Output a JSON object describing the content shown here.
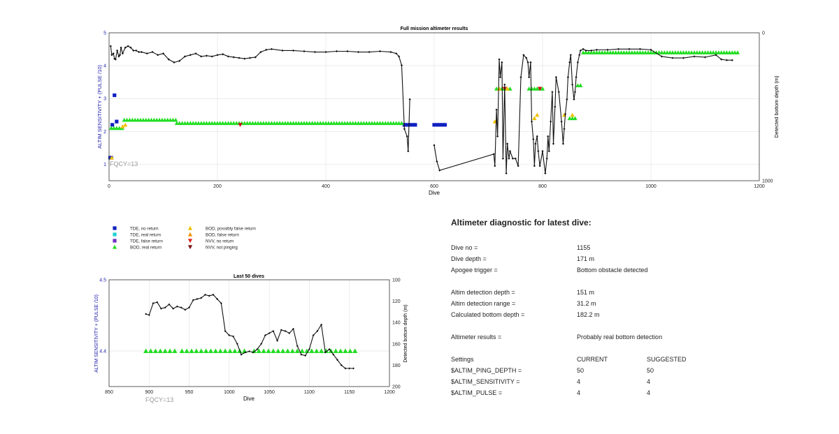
{
  "chart_data": [
    {
      "type": "scatter",
      "title": "Full mission altimeter results",
      "xlabel": "Dive",
      "ylabel": "ALTIM SENSITIVITY + (PULSE /10)",
      "ylabel_right": "Detected bottom depth (m)",
      "xlim": [
        0,
        1200
      ],
      "ylim": [
        0.5,
        5
      ],
      "ylim_right": [
        1000,
        0
      ],
      "xticks": [
        "0",
        "200",
        "400",
        "600",
        "800",
        "1000",
        "1200"
      ],
      "yticks": [
        "1",
        "2",
        "3",
        "4",
        "5"
      ],
      "yticks_right": [
        "0",
        "1000"
      ],
      "annotation": "FQCY=13",
      "grid": true,
      "colors": {
        "tde": "#1020c0",
        "bod_real": "#22dd22",
        "bod_possible": "#f0c000",
        "nvv": "#cc1111",
        "depth": "#111111"
      },
      "series": [
        {
          "name": "TDE, no return",
          "marker": "square",
          "color": "#1020c0",
          "x": [
            2,
            4,
            6,
            10,
            14,
            545,
            550,
            555,
            560,
            565,
            600,
            605,
            610,
            615,
            620
          ],
          "y": [
            1.2,
            1.2,
            2.2,
            3.1,
            2.3,
            2.2,
            2.2,
            2.2,
            2.2,
            2.2,
            2.2,
            2.2,
            2.2,
            2.2,
            2.2
          ]
        },
        {
          "name": "BOD, real return",
          "marker": "triangle",
          "color": "#22dd22",
          "segments": [
            [
              4,
              28,
              2.1
            ],
            [
              28,
              125,
              2.35
            ],
            [
              125,
              540,
              2.25
            ],
            [
              715,
              740,
              3.3
            ],
            [
              775,
              800,
              3.3
            ],
            [
              850,
              862,
              2.4
            ],
            [
              865,
              870,
              3.4
            ],
            [
              875,
              1160,
              4.4
            ]
          ]
        },
        {
          "name": "BOD, false return",
          "marker": "triangle",
          "color": "#f0c000",
          "x": [
            5,
            25,
            30,
            712,
            720,
            735,
            785,
            790,
            840,
            855
          ],
          "y": [
            1.2,
            2.15,
            2.2,
            2.3,
            3.3,
            3.3,
            2.4,
            2.5,
            2.5,
            2.5
          ]
        },
        {
          "name": "NVV, no return",
          "marker": "triangle-down",
          "color": "#cc1111",
          "x": [
            730,
            795,
            242
          ],
          "y": [
            3.3,
            3.3,
            2.2
          ]
        },
        {
          "name": "Detected bottom depth",
          "marker": "diamond",
          "color": "#111111",
          "axis": "right",
          "x": [
            3,
            5,
            8,
            10,
            12,
            15,
            18,
            20,
            22,
            25,
            30,
            35,
            40,
            45,
            50,
            55,
            60,
            70,
            80,
            90,
            100,
            110,
            120,
            130,
            140,
            150,
            160,
            170,
            180,
            190,
            200,
            210,
            220,
            230,
            240,
            250,
            260,
            270,
            280,
            290,
            300,
            320,
            340,
            360,
            380,
            400,
            420,
            440,
            460,
            480,
            500,
            520,
            530,
            535,
            540,
            545,
            550,
            552,
            555
          ],
          "y": [
            90,
            150,
            140,
            175,
            180,
            120,
            160,
            150,
            100,
            140,
            100,
            90,
            100,
            120,
            120,
            130,
            130,
            140,
            130,
            150,
            140,
            180,
            200,
            190,
            160,
            150,
            140,
            160,
            155,
            160,
            150,
            145,
            160,
            165,
            170,
            175,
            170,
            165,
            130,
            115,
            110,
            120,
            120,
            125,
            130,
            130,
            125,
            125,
            130,
            130,
            125,
            130,
            140,
            160,
            220,
            650,
            700,
            800,
            450
          ]
        },
        {
          "name": "Detected bottom depth (late)",
          "marker": "diamond",
          "color": "#111111",
          "axis": "right",
          "x": [
            600,
            605,
            610,
            710,
            712,
            715,
            717,
            720,
            722,
            725,
            727,
            730,
            733,
            735,
            738,
            740,
            745,
            750,
            755,
            760,
            765,
            770,
            773,
            775,
            778,
            780,
            783,
            785,
            787,
            790,
            792,
            795,
            800,
            805,
            808,
            810,
            812,
            815,
            818,
            820,
            823,
            825,
            830,
            835,
            838,
            840,
            842,
            845,
            847,
            850,
            852,
            855,
            858,
            860,
            862,
            865,
            868,
            870,
            875,
            880,
            890,
            900,
            920,
            940,
            960,
            980,
            1000,
            1020,
            1040,
            1060,
            1080,
            1100,
            1120,
            1130,
            1140,
            1150
          ],
          "y": [
            760,
            870,
            930,
            820,
            900,
            520,
            700,
            180,
            300,
            200,
            850,
            350,
            950,
            750,
            850,
            800,
            850,
            850,
            900,
            300,
            150,
            170,
            200,
            300,
            200,
            600,
            720,
            900,
            750,
            700,
            800,
            900,
            800,
            950,
            850,
            700,
            800,
            600,
            400,
            750,
            500,
            300,
            400,
            600,
            750,
            650,
            550,
            450,
            300,
            200,
            150,
            350,
            450,
            400,
            300,
            200,
            150,
            120,
            110,
            120,
            120,
            115,
            115,
            110,
            110,
            110,
            115,
            160,
            170,
            170,
            160,
            165,
            150,
            180,
            185,
            185
          ]
        }
      ]
    },
    {
      "type": "scatter",
      "title": "Last 50 dives",
      "xlabel": "Dive",
      "ylabel": "ALTIM SENSITIVITY + (PULSE /10)",
      "ylabel_right": "Detected bottom depth (m)",
      "xlim": [
        850,
        1200
      ],
      "ylim": [
        4.35,
        4.5
      ],
      "ylim_right": [
        200,
        100
      ],
      "xticks": [
        "850",
        "900",
        "950",
        "1000",
        "1050",
        "1100",
        "1150",
        "1200"
      ],
      "yticks": [
        "4.4",
        "4.5"
      ],
      "yticks_right": [
        "100",
        "120",
        "140",
        "160",
        "180",
        "200"
      ],
      "annotation": "FQCY=13",
      "grid": true,
      "series": [
        {
          "name": "BOD, real return",
          "marker": "triangle",
          "color": "#22dd22",
          "x": [
            896,
            902,
            908,
            914,
            920,
            926,
            932,
            941,
            947,
            953,
            959,
            965,
            971,
            977,
            983,
            989,
            995,
            1001,
            1007,
            1013,
            1019,
            1031,
            1037,
            1043,
            1049,
            1055,
            1061,
            1067,
            1073,
            1079,
            1085,
            1091,
            1097,
            1103,
            1109,
            1115,
            1121,
            1127,
            1133,
            1139,
            1145,
            1151,
            1157
          ],
          "y": [
            4.4,
            4.4,
            4.4,
            4.4,
            4.4,
            4.4,
            4.4,
            4.4,
            4.4,
            4.4,
            4.4,
            4.4,
            4.4,
            4.4,
            4.4,
            4.4,
            4.4,
            4.4,
            4.4,
            4.4,
            4.4,
            4.4,
            4.4,
            4.4,
            4.4,
            4.4,
            4.4,
            4.4,
            4.4,
            4.4,
            4.4,
            4.4,
            4.4,
            4.4,
            4.4,
            4.4,
            4.4,
            4.4,
            4.4,
            4.4,
            4.4,
            4.4,
            4.4
          ]
        },
        {
          "name": "Detected bottom depth",
          "marker": "diamond",
          "color": "#111111",
          "axis": "right",
          "x": [
            896,
            900,
            905,
            910,
            915,
            920,
            925,
            930,
            935,
            940,
            945,
            950,
            955,
            960,
            965,
            970,
            975,
            980,
            985,
            990,
            995,
            1000,
            1005,
            1010,
            1015,
            1020,
            1025,
            1030,
            1035,
            1040,
            1045,
            1050,
            1055,
            1060,
            1065,
            1070,
            1075,
            1080,
            1085,
            1090,
            1095,
            1100,
            1105,
            1110,
            1115,
            1120,
            1125,
            1130,
            1135,
            1140,
            1145,
            1150,
            1155
          ],
          "y": [
            132,
            133,
            122,
            121,
            127,
            126,
            123,
            127,
            125,
            126,
            128,
            126,
            119,
            118,
            117,
            114,
            115,
            114,
            118,
            122,
            148,
            152,
            153,
            160,
            170,
            168,
            167,
            168,
            165,
            160,
            152,
            150,
            148,
            157,
            147,
            148,
            150,
            146,
            162,
            170,
            171,
            165,
            152,
            148,
            142,
            168,
            165,
            170,
            175,
            180,
            183,
            183,
            183
          ]
        }
      ]
    }
  ],
  "legend": [
    {
      "label": "TDE, no return",
      "marker": "square",
      "color": "#1020c0"
    },
    {
      "label": "BOD, possibly false return",
      "marker": "triangle",
      "color": "#f0c000"
    },
    {
      "label": "TDE, real return",
      "marker": "square",
      "color": "#22d0d0"
    },
    {
      "label": "BOD, false return",
      "marker": "triangle",
      "color": "#f09000"
    },
    {
      "label": "TDE, false return",
      "marker": "square",
      "color": "#7030c0"
    },
    {
      "label": "NVV, no return",
      "marker": "triangle-down",
      "color": "#dd2222"
    },
    {
      "label": "BOD, real return",
      "marker": "triangle",
      "color": "#22dd22"
    },
    {
      "label": "NVV, not pinging",
      "marker": "triangle-down",
      "color": "#7a1010"
    }
  ],
  "diagnostic": {
    "title": "Altimeter diagnostic for latest dive:",
    "dive_no_label": "Dive no =",
    "dive_no": "1155",
    "dive_depth_label": "Dive depth =",
    "dive_depth": "171 m",
    "apogee_label": "Apogee trigger =",
    "apogee": "Bottom obstacle detected",
    "det_depth_label": "Altim detection depth =",
    "det_depth": "151 m",
    "det_range_label": "Altim detection range =",
    "det_range": "31.2 m",
    "calc_depth_label": "Calculated bottom depth =",
    "calc_depth": "182.2 m",
    "results_label": "Altimeter results =",
    "results": "Probably real bottom detection",
    "settings_label": "Settings",
    "current_label": "CURRENT",
    "suggested_label": "SUGGESTED",
    "ping_label": "$ALTIM_PING_DEPTH =",
    "ping_current": "50",
    "ping_suggested": "50",
    "sens_label": "$ALTIM_SENSITIVITY =",
    "sens_current": "4",
    "sens_suggested": "4",
    "pulse_label": "$ALTIM_PULSE =",
    "pulse_current": "4",
    "pulse_suggested": "4"
  }
}
